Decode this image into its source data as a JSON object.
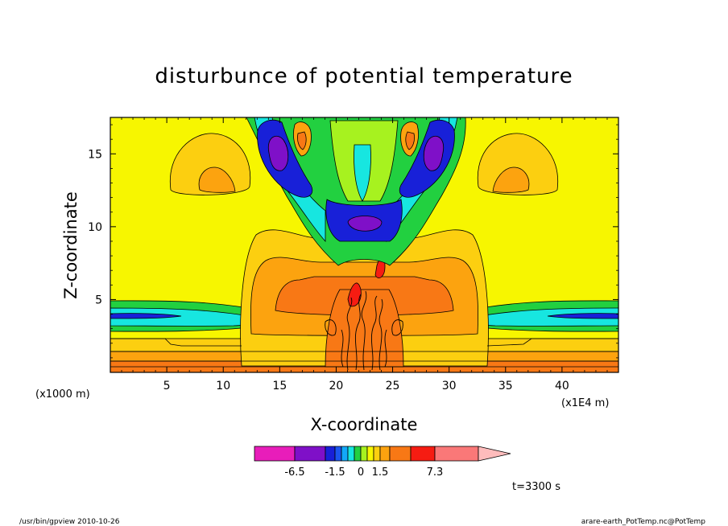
{
  "chart_data": {
    "type": "contour",
    "title": "disturbunce of potential temperature",
    "xlabel": "X-coordinate",
    "ylabel": "Z-coordinate",
    "x_unit": "(x1E4 m)",
    "y_unit": "(x1000 m)",
    "xlim": [
      0,
      45
    ],
    "ylim": [
      0,
      17.5
    ],
    "x_ticks": [
      5,
      10,
      15,
      20,
      25,
      30,
      35,
      40
    ],
    "y_ticks": [
      5,
      10,
      15
    ],
    "colorbar": {
      "min": -6.5,
      "max": 7.3,
      "labels": [
        "-6.5",
        "-1.5",
        "0",
        "1.5",
        "7.3"
      ],
      "colors": [
        "#e81dba",
        "#7f10c8",
        "#1820d8",
        "#1a55f0",
        "#12a8f8",
        "#17e6e0",
        "#22d040",
        "#a7f21f",
        "#f7f600",
        "#fccf10",
        "#fca30f",
        "#f87815",
        "#f61c12",
        "#fa7878",
        "#ffbcbc"
      ]
    },
    "time_label": "t=3300 s",
    "colors": {
      "background": "#f7f600",
      "light_orange": "#fccf10",
      "orange": "#fca30f",
      "dark_orange": "#f87815",
      "red": "#f61c12",
      "green": "#22d040",
      "cyan": "#17e6e0",
      "blue": "#1820d8",
      "purple": "#7f10c8"
    }
  },
  "footer": {
    "left": "/usr/bin/gpview   2010-10-26",
    "right": "arare-earth_PotTemp.nc@PotTemp"
  }
}
